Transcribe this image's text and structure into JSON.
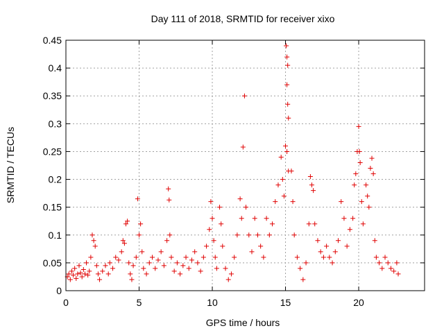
{
  "chart_data": {
    "type": "scatter",
    "title": "Day 111 of 2018, SRMTID for receiver xixo",
    "xlabel": "GPS time / hours",
    "ylabel": "SRMTID / TECUs",
    "xlim": [
      0,
      24.5
    ],
    "ylim": [
      0,
      0.45
    ],
    "x_ticks": [
      0,
      5,
      10,
      15,
      20
    ],
    "x_tick_labels": [
      "0",
      "5",
      "10",
      "15",
      "20"
    ],
    "y_ticks": [
      0,
      0.05,
      0.1,
      0.15,
      0.2,
      0.25,
      0.3,
      0.35,
      0.4,
      0.45
    ],
    "y_tick_labels": [
      "0",
      "0.05",
      "0.1",
      "0.15",
      "0.2",
      "0.25",
      "0.3",
      "0.35",
      "0.4",
      "0.45"
    ],
    "grid": true,
    "marker": "+",
    "marker_color": "#e00000",
    "series": [
      {
        "name": "SRMTID",
        "points": [
          [
            0.1,
            0.025
          ],
          [
            0.2,
            0.03
          ],
          [
            0.3,
            0.02
          ],
          [
            0.4,
            0.035
          ],
          [
            0.5,
            0.028
          ],
          [
            0.6,
            0.04
          ],
          [
            0.7,
            0.022
          ],
          [
            0.8,
            0.03
          ],
          [
            0.9,
            0.045
          ],
          [
            1.0,
            0.032
          ],
          [
            1.1,
            0.025
          ],
          [
            1.2,
            0.038
          ],
          [
            1.3,
            0.03
          ],
          [
            1.4,
            0.05
          ],
          [
            1.5,
            0.028
          ],
          [
            1.6,
            0.035
          ],
          [
            1.7,
            0.06
          ],
          [
            1.8,
            0.1
          ],
          [
            1.9,
            0.09
          ],
          [
            2.0,
            0.08
          ],
          [
            2.1,
            0.045
          ],
          [
            2.2,
            0.03
          ],
          [
            2.3,
            0.02
          ],
          [
            2.5,
            0.035
          ],
          [
            2.7,
            0.045
          ],
          [
            2.9,
            0.03
          ],
          [
            3.0,
            0.05
          ],
          [
            3.2,
            0.04
          ],
          [
            3.4,
            0.06
          ],
          [
            3.6,
            0.055
          ],
          [
            3.8,
            0.07
          ],
          [
            3.9,
            0.09
          ],
          [
            4.0,
            0.085
          ],
          [
            4.1,
            0.12
          ],
          [
            4.2,
            0.125
          ],
          [
            4.3,
            0.05
          ],
          [
            4.4,
            0.03
          ],
          [
            4.5,
            0.02
          ],
          [
            4.6,
            0.045
          ],
          [
            4.8,
            0.06
          ],
          [
            4.9,
            0.165
          ],
          [
            5.0,
            0.1
          ],
          [
            5.1,
            0.12
          ],
          [
            5.2,
            0.07
          ],
          [
            5.3,
            0.04
          ],
          [
            5.5,
            0.03
          ],
          [
            5.7,
            0.05
          ],
          [
            5.9,
            0.06
          ],
          [
            6.1,
            0.04
          ],
          [
            6.3,
            0.055
          ],
          [
            6.5,
            0.07
          ],
          [
            6.7,
            0.045
          ],
          [
            6.9,
            0.09
          ],
          [
            7.0,
            0.183
          ],
          [
            7.05,
            0.163
          ],
          [
            7.1,
            0.1
          ],
          [
            7.2,
            0.06
          ],
          [
            7.4,
            0.035
          ],
          [
            7.6,
            0.05
          ],
          [
            7.8,
            0.03
          ],
          [
            8.0,
            0.045
          ],
          [
            8.2,
            0.06
          ],
          [
            8.4,
            0.04
          ],
          [
            8.6,
            0.055
          ],
          [
            8.8,
            0.07
          ],
          [
            9.0,
            0.05
          ],
          [
            9.2,
            0.035
          ],
          [
            9.4,
            0.06
          ],
          [
            9.6,
            0.08
          ],
          [
            9.8,
            0.11
          ],
          [
            9.9,
            0.16
          ],
          [
            10.0,
            0.13
          ],
          [
            10.1,
            0.09
          ],
          [
            10.2,
            0.06
          ],
          [
            10.3,
            0.04
          ],
          [
            10.5,
            0.15
          ],
          [
            10.6,
            0.12
          ],
          [
            10.7,
            0.08
          ],
          [
            10.9,
            0.04
          ],
          [
            11.1,
            0.02
          ],
          [
            11.3,
            0.03
          ],
          [
            11.5,
            0.06
          ],
          [
            11.7,
            0.1
          ],
          [
            11.9,
            0.165
          ],
          [
            12.0,
            0.13
          ],
          [
            12.1,
            0.258
          ],
          [
            12.2,
            0.35
          ],
          [
            12.3,
            0.15
          ],
          [
            12.5,
            0.1
          ],
          [
            12.7,
            0.07
          ],
          [
            12.9,
            0.13
          ],
          [
            13.1,
            0.1
          ],
          [
            13.3,
            0.08
          ],
          [
            13.5,
            0.06
          ],
          [
            13.7,
            0.13
          ],
          [
            13.9,
            0.1
          ],
          [
            14.1,
            0.12
          ],
          [
            14.3,
            0.16
          ],
          [
            14.5,
            0.19
          ],
          [
            14.7,
            0.24
          ],
          [
            14.8,
            0.2
          ],
          [
            14.9,
            0.17
          ],
          [
            15.0,
            0.26
          ],
          [
            15.05,
            0.44
          ],
          [
            15.1,
            0.42
          ],
          [
            15.15,
            0.405
          ],
          [
            15.1,
            0.37
          ],
          [
            15.15,
            0.335
          ],
          [
            15.2,
            0.31
          ],
          [
            15.1,
            0.25
          ],
          [
            15.2,
            0.215
          ],
          [
            15.4,
            0.215
          ],
          [
            15.5,
            0.16
          ],
          [
            15.6,
            0.1
          ],
          [
            15.8,
            0.06
          ],
          [
            16.0,
            0.04
          ],
          [
            16.2,
            0.02
          ],
          [
            16.4,
            0.05
          ],
          [
            16.6,
            0.12
          ],
          [
            16.7,
            0.205
          ],
          [
            16.8,
            0.19
          ],
          [
            16.9,
            0.18
          ],
          [
            17.0,
            0.12
          ],
          [
            17.2,
            0.09
          ],
          [
            17.4,
            0.07
          ],
          [
            17.6,
            0.06
          ],
          [
            17.8,
            0.08
          ],
          [
            18.0,
            0.06
          ],
          [
            18.2,
            0.05
          ],
          [
            18.4,
            0.07
          ],
          [
            18.6,
            0.09
          ],
          [
            18.8,
            0.16
          ],
          [
            19.0,
            0.13
          ],
          [
            19.2,
            0.08
          ],
          [
            19.4,
            0.11
          ],
          [
            19.6,
            0.13
          ],
          [
            19.7,
            0.19
          ],
          [
            19.8,
            0.21
          ],
          [
            19.9,
            0.25
          ],
          [
            20.0,
            0.295
          ],
          [
            20.05,
            0.25
          ],
          [
            20.1,
            0.23
          ],
          [
            20.2,
            0.16
          ],
          [
            20.3,
            0.12
          ],
          [
            20.5,
            0.19
          ],
          [
            20.6,
            0.17
          ],
          [
            20.7,
            0.15
          ],
          [
            20.8,
            0.22
          ],
          [
            20.9,
            0.238
          ],
          [
            21.0,
            0.21
          ],
          [
            21.1,
            0.09
          ],
          [
            21.2,
            0.06
          ],
          [
            21.4,
            0.05
          ],
          [
            21.6,
            0.04
          ],
          [
            21.8,
            0.06
          ],
          [
            22.0,
            0.05
          ],
          [
            22.2,
            0.04
          ],
          [
            22.4,
            0.035
          ],
          [
            22.6,
            0.05
          ],
          [
            22.7,
            0.03
          ]
        ]
      }
    ]
  }
}
